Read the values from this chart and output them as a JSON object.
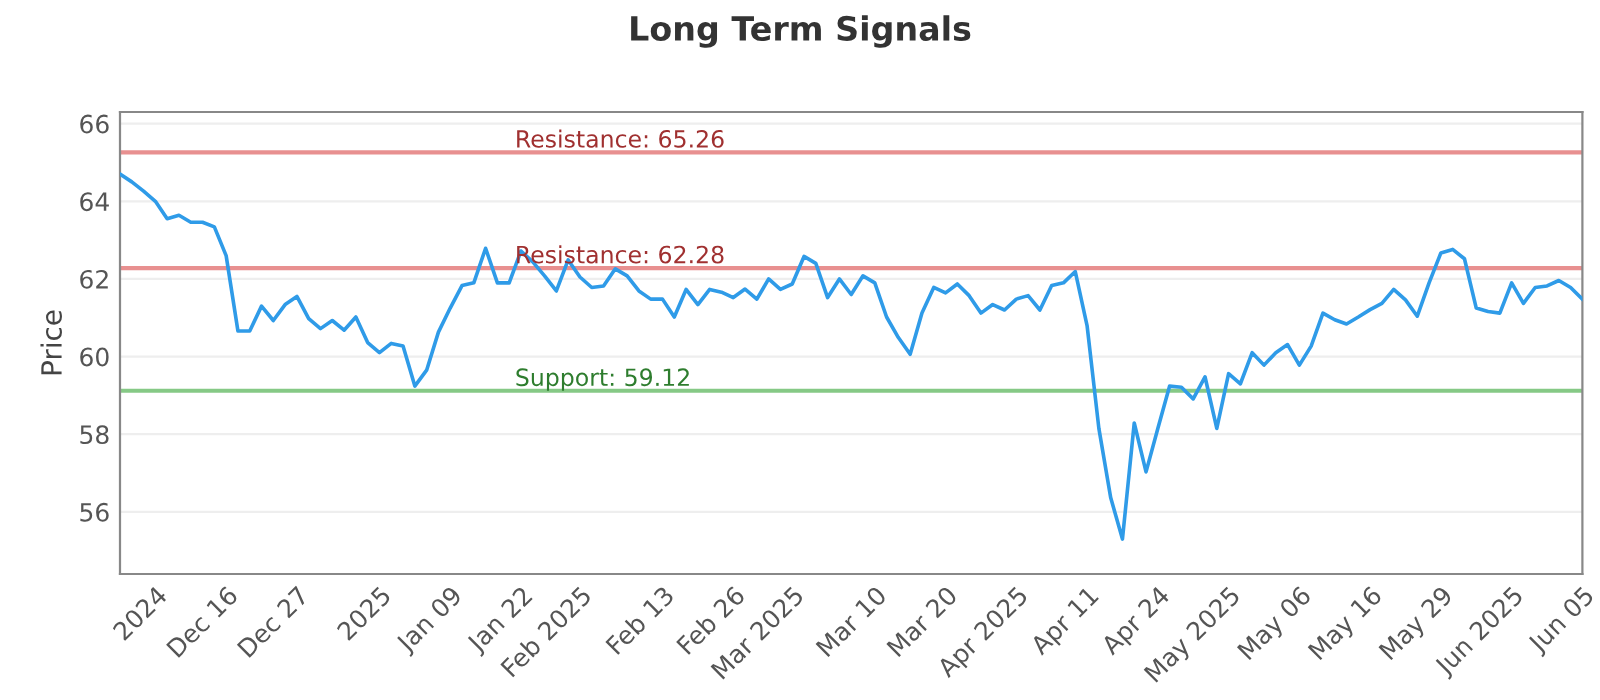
{
  "chart_data": {
    "type": "line",
    "title": "Long Term Signals",
    "ylabel": "Price",
    "categories": [
      null,
      null,
      null,
      "2024",
      null,
      null,
      null,
      null,
      null,
      "Dec 16",
      null,
      null,
      null,
      null,
      null,
      "Dec 27",
      null,
      null,
      null,
      null,
      null,
      null,
      "2025",
      null,
      null,
      null,
      null,
      null,
      "Jan 09",
      null,
      null,
      null,
      null,
      null,
      "Jan 22",
      null,
      null,
      null,
      null,
      "Feb 2025",
      null,
      null,
      null,
      null,
      null,
      null,
      "Feb 13",
      null,
      null,
      null,
      null,
      null,
      "Feb 26",
      null,
      null,
      null,
      null,
      "Mar 2025",
      null,
      null,
      null,
      null,
      null,
      null,
      "Mar 10",
      null,
      null,
      null,
      null,
      null,
      "Mar 20",
      null,
      null,
      null,
      null,
      null,
      "Apr 2025",
      null,
      null,
      null,
      null,
      null,
      "Apr 11",
      null,
      null,
      null,
      null,
      null,
      "Apr 24",
      null,
      null,
      null,
      null,
      null,
      "May 2025",
      null,
      null,
      null,
      null,
      null,
      "May 06",
      null,
      null,
      null,
      null,
      null,
      "May 16",
      null,
      null,
      null,
      null,
      null,
      "May 29",
      null,
      null,
      null,
      null,
      null,
      "Jun 2025",
      null,
      null,
      null,
      null,
      null,
      "Jun 05"
    ],
    "series": [
      {
        "color": "#2f9be8",
        "values": [
          64.7,
          64.5,
          64.26,
          64.0,
          63.55,
          63.64,
          63.46,
          63.46,
          63.34,
          62.6,
          60.66,
          60.66,
          61.3,
          60.93,
          61.34,
          61.55,
          60.98,
          60.72,
          60.93,
          60.68,
          61.02,
          60.36,
          60.1,
          60.34,
          60.27,
          59.24,
          59.65,
          60.63,
          61.25,
          61.83,
          61.9,
          62.79,
          61.9,
          61.9,
          62.72,
          62.44,
          62.08,
          61.69,
          62.49,
          62.05,
          61.78,
          61.82,
          62.26,
          62.08,
          61.69,
          61.48,
          61.48,
          61.02,
          61.73,
          61.34,
          61.73,
          61.66,
          61.52,
          61.74,
          61.48,
          62.0,
          61.73,
          61.87,
          62.58,
          62.4,
          61.52,
          62.0,
          61.6,
          62.08,
          61.9,
          61.02,
          60.49,
          60.06,
          61.12,
          61.78,
          61.64,
          61.87,
          61.57,
          61.12,
          61.34,
          61.2,
          61.48,
          61.57,
          61.2,
          61.83,
          61.9,
          62.19,
          60.8,
          58.15,
          56.37,
          55.3,
          58.29,
          57.03,
          58.15,
          59.24,
          59.21,
          58.91,
          59.48,
          58.15,
          59.56,
          59.3,
          60.1,
          59.78,
          60.1,
          60.31,
          59.78,
          60.27,
          61.12,
          60.95,
          60.84,
          61.02,
          61.21,
          61.37,
          61.73,
          61.46,
          61.04,
          61.9,
          62.67,
          62.76,
          62.52,
          61.25,
          61.16,
          61.12,
          61.9,
          61.37,
          61.78,
          61.82,
          61.96,
          61.78,
          61.48
        ]
      }
    ],
    "ylim": [
      54.4,
      66.3
    ],
    "yticks": [
      56,
      58,
      60,
      62,
      64,
      66
    ],
    "grid": "y",
    "marker": "none",
    "line_style": "solid",
    "ref_lines": [
      {
        "axis": "y",
        "value": 65.26,
        "label": "Resistance: 65.26",
        "color": "#e89090"
      },
      {
        "axis": "y",
        "value": 62.28,
        "label": "Resistance: 62.28",
        "color": "#e89090"
      },
      {
        "axis": "y",
        "value": 59.12,
        "label": "Support: 59.12",
        "color": "#86c986"
      }
    ]
  }
}
